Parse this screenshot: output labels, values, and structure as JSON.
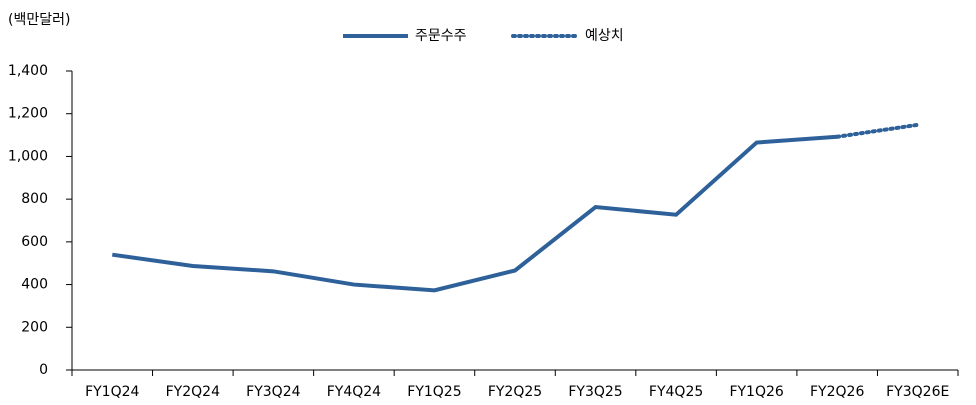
{
  "chart_data": {
    "type": "line",
    "y_label": "(백만달러)",
    "categories": [
      "FY1Q24",
      "FY2Q24",
      "FY3Q24",
      "FY4Q24",
      "FY1Q25",
      "FY2Q25",
      "FY3Q25",
      "FY4Q25",
      "FY1Q26",
      "FY2Q26",
      "FY3Q26E"
    ],
    "series": [
      {
        "name": "주문수주",
        "color": "#2e6199",
        "style": "solid",
        "values": [
          540,
          487,
          462,
          400,
          373,
          466,
          763,
          727,
          1065,
          1092,
          null
        ]
      },
      {
        "name": "예상치",
        "color": "#2e6199",
        "style": "dotted",
        "values": [
          null,
          null,
          null,
          null,
          null,
          null,
          null,
          null,
          null,
          1092,
          1148
        ]
      }
    ],
    "ylim": [
      0,
      1400
    ],
    "yticks": [
      0,
      200,
      400,
      600,
      800,
      {
        "value": 1000,
        "label": "1,000"
      },
      {
        "value": 1200,
        "label": "1,200"
      },
      {
        "value": 1400,
        "label": "1,400"
      }
    ],
    "legend": "top"
  }
}
